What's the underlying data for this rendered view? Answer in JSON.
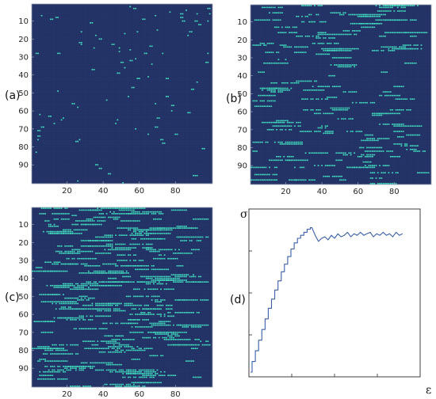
{
  "figure": {
    "panel_labels": [
      "(a)",
      "(b)",
      "(c)",
      "(d)"
    ]
  },
  "chart_data": [
    {
      "type": "heatmap",
      "panel": "(a)",
      "grid_size": [
        100,
        100
      ],
      "x_ticks": [
        20,
        40,
        60,
        80
      ],
      "y_ticks": [
        10,
        20,
        30,
        40,
        50,
        60,
        70,
        80,
        90
      ],
      "colors": {
        "background": "#26376e",
        "cell": "#42e0c0"
      },
      "highlight_density": "sparse isolated cells",
      "segment_length": [
        1,
        2
      ],
      "segment_count": 95,
      "seed": 11
    },
    {
      "type": "heatmap",
      "panel": "(b)",
      "grid_size": [
        100,
        100
      ],
      "x_ticks": [
        20,
        40,
        60,
        80
      ],
      "y_ticks": [
        10,
        20,
        30,
        40,
        50,
        60,
        70,
        80,
        90
      ],
      "colors": {
        "background": "#26376e",
        "cell": "#42e0c0"
      },
      "highlight_density": "horizontal streaks",
      "segment_length": [
        4,
        16
      ],
      "segment_count": 150,
      "seed": 23
    },
    {
      "type": "heatmap",
      "panel": "(c)",
      "grid_size": [
        100,
        100
      ],
      "x_ticks": [
        20,
        40,
        60,
        80
      ],
      "y_ticks": [
        10,
        20,
        30,
        40,
        50,
        60,
        70,
        80,
        90
      ],
      "colors": {
        "background": "#26376e",
        "cell": "#42e0c0"
      },
      "highlight_density": "dense horizontal streaks",
      "segment_length": [
        4,
        20
      ],
      "segment_count": 235,
      "seed": 37
    },
    {
      "type": "line",
      "panel": "(d)",
      "xlabel": "ε",
      "ylabel": "σ",
      "ticks_labeled": false,
      "xlim": [
        0,
        1
      ],
      "ylim": [
        0,
        1
      ],
      "line_color": "#3a5fa8",
      "series": [
        {
          "x": [
            0.0,
            0.02,
            0.04,
            0.06,
            0.08,
            0.1,
            0.12,
            0.14,
            0.16,
            0.18,
            0.2,
            0.22,
            0.24,
            0.26,
            0.28,
            0.3,
            0.32,
            0.34,
            0.36,
            0.38,
            0.4,
            0.42,
            0.44,
            0.46,
            0.48,
            0.5,
            0.52,
            0.54,
            0.56,
            0.58,
            0.6,
            0.62,
            0.64,
            0.66,
            0.68,
            0.7,
            0.72,
            0.74,
            0.76,
            0.78,
            0.8,
            0.82,
            0.84,
            0.86,
            0.88,
            0.9,
            0.92,
            0.94
          ],
          "y": [
            0.0,
            0.07,
            0.14,
            0.21,
            0.28,
            0.35,
            0.42,
            0.48,
            0.54,
            0.6,
            0.66,
            0.71,
            0.76,
            0.81,
            0.85,
            0.88,
            0.9,
            0.92,
            0.94,
            0.95,
            0.9,
            0.86,
            0.88,
            0.89,
            0.87,
            0.9,
            0.88,
            0.91,
            0.89,
            0.9,
            0.92,
            0.89,
            0.91,
            0.9,
            0.92,
            0.9,
            0.91,
            0.92,
            0.89,
            0.91,
            0.9,
            0.92,
            0.9,
            0.91,
            0.89,
            0.92,
            0.9,
            0.91
          ]
        }
      ]
    }
  ]
}
